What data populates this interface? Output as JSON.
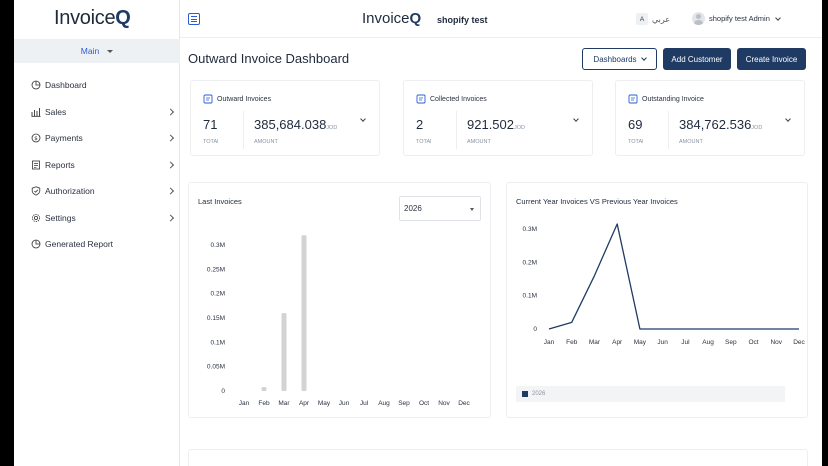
{
  "brand": {
    "name": "Invoice",
    "mark": "Q"
  },
  "sidebar": {
    "selector": "Main",
    "items": [
      {
        "label": "Dashboard",
        "icon": "dashboard-icon",
        "expandable": false
      },
      {
        "label": "Sales",
        "icon": "sales-icon",
        "expandable": true
      },
      {
        "label": "Payments",
        "icon": "payments-icon",
        "expandable": true
      },
      {
        "label": "Reports",
        "icon": "reports-icon",
        "expandable": true
      },
      {
        "label": "Authorization",
        "icon": "authorization-icon",
        "expandable": true
      },
      {
        "label": "Settings",
        "icon": "settings-icon",
        "expandable": true
      },
      {
        "label": "Generated Report",
        "icon": "generated-report-icon",
        "expandable": false
      }
    ]
  },
  "header": {
    "store": "shopify test",
    "lang_badge": "A",
    "lang_label": "عربي",
    "user": "shopify test Admin"
  },
  "page": {
    "title": "Outward Invoice Dashboard",
    "buttons": {
      "dashboards": "Dashboards",
      "add_customer": "Add Customer",
      "create_invoice": "Create Invoice"
    }
  },
  "cards": [
    {
      "title": "Outward Invoices",
      "count": "71",
      "count_label": "TOTAl",
      "amount": "385,684.038",
      "currency": "JOD",
      "amount_label": "AMOUNT"
    },
    {
      "title": "Collected Invoices",
      "count": "2",
      "count_label": "TOTAl",
      "amount": "921.502",
      "currency": "JOD",
      "amount_label": "AMOUNT"
    },
    {
      "title": "Outstanding Invoice",
      "count": "69",
      "count_label": "TOTAl",
      "amount": "384,762.536",
      "currency": "JOD",
      "amount_label": "AMOUNT"
    }
  ],
  "colors": {
    "primary": "#1f3b64",
    "accent": "#2b5bd6",
    "bar": "#d3d3d3"
  },
  "last_invoices": {
    "title": "Last Invoices",
    "year": "2026"
  },
  "comparison": {
    "title": "Current Year Invoices VS Previous Year Invoices",
    "legend": "2026"
  },
  "chart_data": [
    {
      "type": "bar",
      "title": "Last Invoices",
      "categories": [
        "Jan",
        "Feb",
        "Mar",
        "Apr",
        "May",
        "Jun",
        "Jul",
        "Aug",
        "Sep",
        "Oct",
        "Nov",
        "Dec"
      ],
      "values": [
        0,
        8000,
        160000,
        320000,
        0,
        0,
        0,
        0,
        0,
        0,
        0,
        0
      ],
      "yticks": [
        "0",
        "0.05M",
        "0.1M",
        "0.15M",
        "0.2M",
        "0.25M",
        "0.3M"
      ],
      "ylim": [
        0,
        300000
      ],
      "grid": false
    },
    {
      "type": "line",
      "title": "Current Year Invoices VS Previous Year Invoices",
      "categories": [
        "Jan",
        "Feb",
        "Mar",
        "Apr",
        "May",
        "Jun",
        "Jul",
        "Aug",
        "Sep",
        "Oct",
        "Nov",
        "Dec"
      ],
      "series": [
        {
          "name": "2026",
          "values": [
            0,
            20000,
            160000,
            315000,
            0,
            0,
            0,
            0,
            0,
            0,
            0,
            0
          ]
        }
      ],
      "yticks": [
        "0",
        "0.1M",
        "0.2M",
        "0.3M"
      ],
      "ylim": [
        0,
        300000
      ],
      "legend": "bottom",
      "grid": false
    }
  ]
}
